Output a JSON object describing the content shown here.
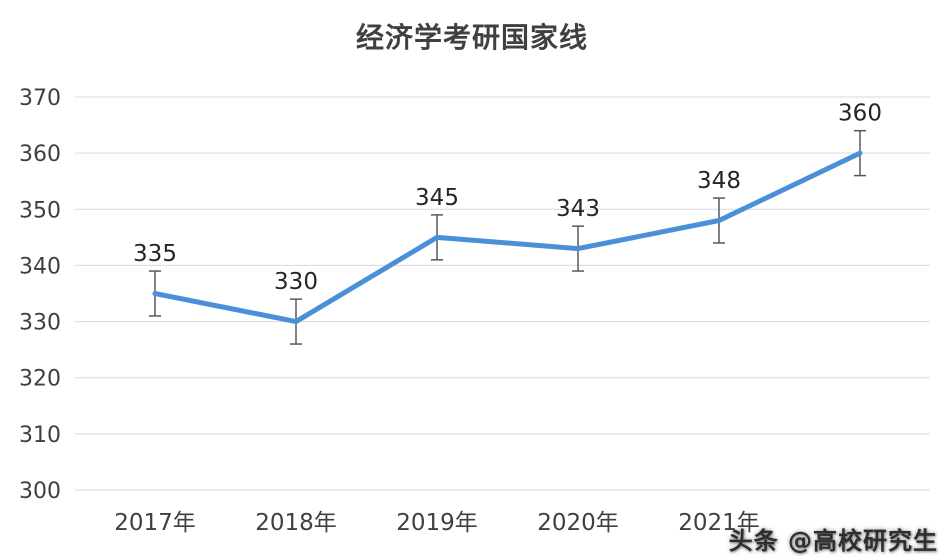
{
  "chart_data": {
    "type": "line",
    "title": "经济学考研国家线",
    "categories": [
      "2017年",
      "2018年",
      "2019年",
      "2020年",
      "2021年",
      ""
    ],
    "values": [
      335,
      330,
      345,
      343,
      348,
      360
    ],
    "error_bar": 4,
    "y_ticks": [
      300,
      310,
      320,
      330,
      340,
      350,
      360,
      370
    ],
    "ylim": [
      300,
      370
    ],
    "grid": true,
    "legend": "none",
    "line_color": "#4a90d9",
    "error_bar_color": "#595959",
    "data_label_color": "#262626",
    "axis_label_color": "#404040",
    "grid_color": "#d9d9d9"
  },
  "watermark": {
    "text": "头条 @高校研究生"
  }
}
